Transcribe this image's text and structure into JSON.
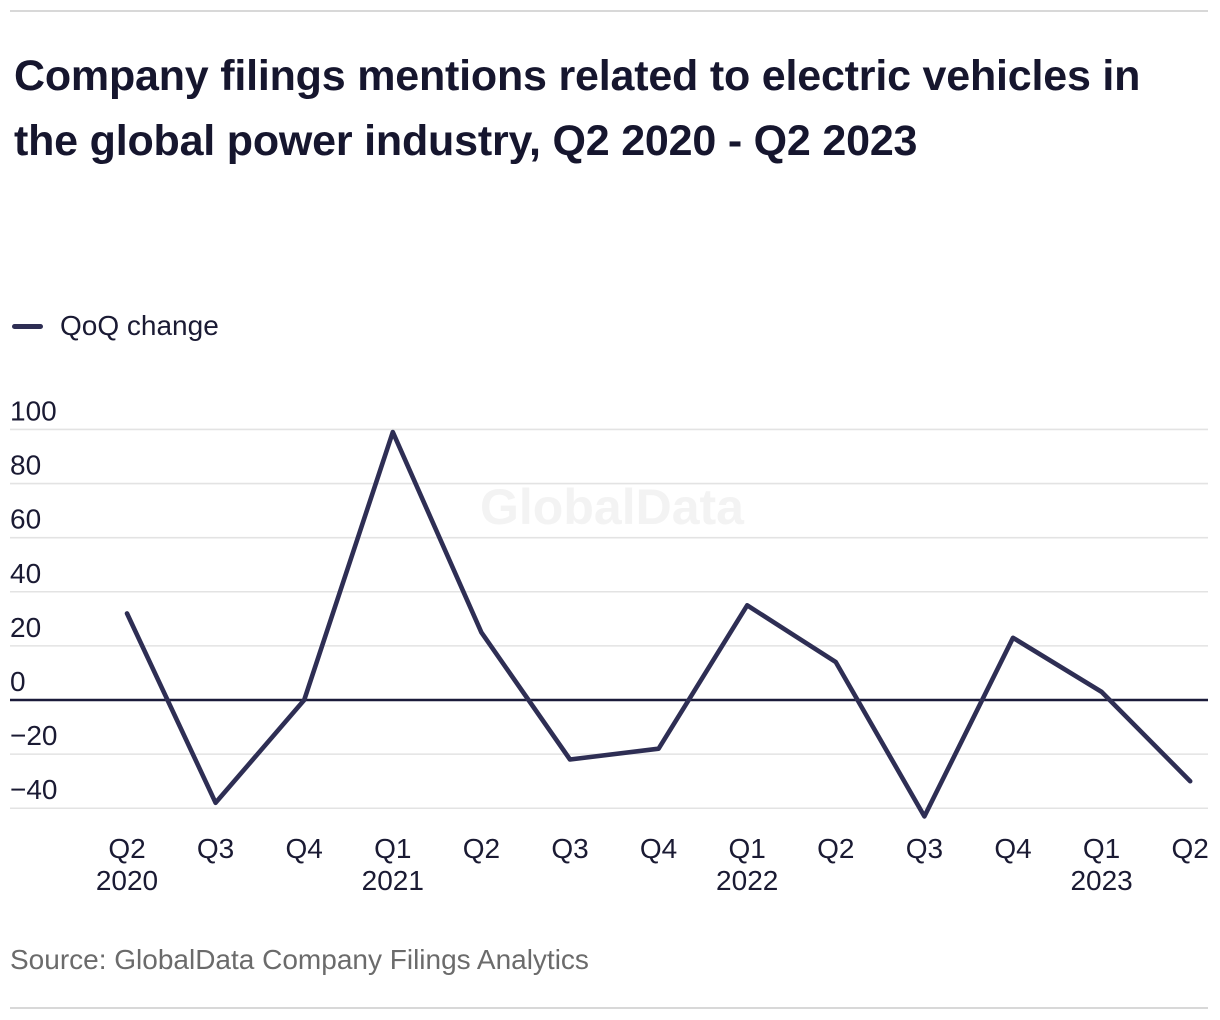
{
  "header": {
    "title": "Company filings mentions related to electric vehicles in the global power industry, Q2 2020 - Q2 2023"
  },
  "legend": {
    "label": "QoQ change"
  },
  "watermark": {
    "text": "GlobalData"
  },
  "footer": {
    "source": "Source: GlobalData Company Filings Analytics"
  },
  "colors": {
    "accent_line": "#2e2e54",
    "zero_axis": "#1b1b3a",
    "gridline": "#e3e3e3",
    "tick_text": "#1a1a33",
    "watermark": "#f3f3f3",
    "source_text": "#6b6b6b",
    "rule": "#d8d8d8"
  },
  "chart_data": {
    "type": "line",
    "title": "Company filings mentions related to electric vehicles in the global power industry, Q2 2020 - Q2 2023",
    "categories": [
      "Q2 2020",
      "Q3 2020",
      "Q4 2020",
      "Q1 2021",
      "Q2 2021",
      "Q3 2021",
      "Q4 2021",
      "Q1 2022",
      "Q2 2022",
      "Q3 2022",
      "Q4 2022",
      "Q1 2023",
      "Q2 2023"
    ],
    "x_tick_top": [
      "Q2",
      "Q3",
      "Q4",
      "Q1",
      "Q2",
      "Q3",
      "Q4",
      "Q1",
      "Q2",
      "Q3",
      "Q4",
      "Q1",
      "Q2"
    ],
    "x_tick_bottom": [
      "2020",
      "",
      "",
      "2021",
      "",
      "",
      "",
      "2022",
      "",
      "",
      "",
      "2023",
      ""
    ],
    "series": [
      {
        "name": "QoQ change",
        "values": [
          32,
          -38,
          0,
          99,
          25,
          -22,
          -18,
          35,
          14,
          -43,
          23,
          3,
          -30
        ]
      }
    ],
    "y_ticks": [
      100,
      80,
      60,
      40,
      20,
      0,
      -20,
      -40
    ],
    "ylim": [
      -50,
      110
    ],
    "xlabel": "",
    "ylabel": "",
    "grid": true,
    "legend_position": "top-left",
    "zero_baseline": true
  }
}
